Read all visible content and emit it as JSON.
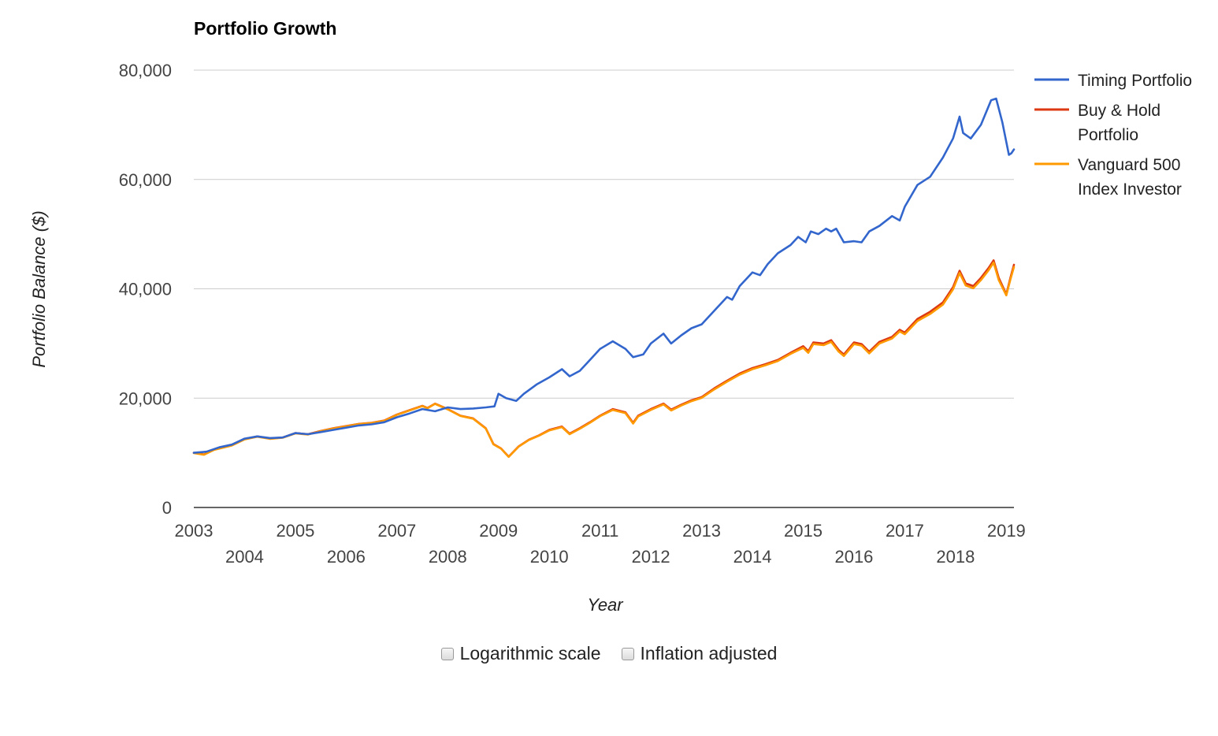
{
  "chart_data": {
    "type": "line",
    "title": "Portfolio Growth",
    "xlabel": "Year",
    "ylabel": "Portfolio Balance ($)",
    "ylim": [
      0,
      80000
    ],
    "y_ticks": [
      "0",
      "20,000",
      "40,000",
      "60,000",
      "80,000"
    ],
    "y_tick_values": [
      0,
      20000,
      40000,
      60000,
      80000
    ],
    "xlim": [
      2003.0,
      2019.15
    ],
    "x_ticks_row1": [
      "2003",
      "2005",
      "2007",
      "2009",
      "2011",
      "2013",
      "2015",
      "2017",
      "2019"
    ],
    "x_ticks_row2": [
      "2004",
      "2006",
      "2008",
      "2010",
      "2012",
      "2014",
      "2016",
      "2018"
    ],
    "grid": true,
    "legend_position": "right",
    "series": [
      {
        "name": "Timing Portfolio",
        "color": "#3366cc",
        "points": [
          [
            2003.0,
            10000
          ],
          [
            2003.25,
            10200
          ],
          [
            2003.5,
            11000
          ],
          [
            2003.75,
            11500
          ],
          [
            2004.0,
            12600
          ],
          [
            2004.25,
            13000
          ],
          [
            2004.5,
            12700
          ],
          [
            2004.75,
            12800
          ],
          [
            2005.0,
            13600
          ],
          [
            2005.25,
            13400
          ],
          [
            2005.5,
            13800
          ],
          [
            2005.75,
            14200
          ],
          [
            2006.0,
            14600
          ],
          [
            2006.25,
            15000
          ],
          [
            2006.5,
            15200
          ],
          [
            2006.75,
            15600
          ],
          [
            2007.0,
            16500
          ],
          [
            2007.25,
            17200
          ],
          [
            2007.5,
            18000
          ],
          [
            2007.75,
            17600
          ],
          [
            2008.0,
            18300
          ],
          [
            2008.25,
            18000
          ],
          [
            2008.5,
            18100
          ],
          [
            2008.75,
            18300
          ],
          [
            2008.92,
            18500
          ],
          [
            2009.0,
            20800
          ],
          [
            2009.15,
            20000
          ],
          [
            2009.35,
            19500
          ],
          [
            2009.5,
            20800
          ],
          [
            2009.75,
            22500
          ],
          [
            2010.0,
            23800
          ],
          [
            2010.25,
            25300
          ],
          [
            2010.4,
            24000
          ],
          [
            2010.6,
            25000
          ],
          [
            2010.75,
            26500
          ],
          [
            2011.0,
            29000
          ],
          [
            2011.25,
            30400
          ],
          [
            2011.5,
            29000
          ],
          [
            2011.65,
            27500
          ],
          [
            2011.85,
            28000
          ],
          [
            2012.0,
            30000
          ],
          [
            2012.25,
            31800
          ],
          [
            2012.4,
            30000
          ],
          [
            2012.6,
            31500
          ],
          [
            2012.8,
            32800
          ],
          [
            2013.0,
            33500
          ],
          [
            2013.25,
            36000
          ],
          [
            2013.5,
            38500
          ],
          [
            2013.6,
            38000
          ],
          [
            2013.75,
            40500
          ],
          [
            2014.0,
            43000
          ],
          [
            2014.15,
            42500
          ],
          [
            2014.3,
            44500
          ],
          [
            2014.5,
            46500
          ],
          [
            2014.75,
            48000
          ],
          [
            2014.9,
            49500
          ],
          [
            2015.05,
            48500
          ],
          [
            2015.15,
            50500
          ],
          [
            2015.3,
            50000
          ],
          [
            2015.45,
            51000
          ],
          [
            2015.55,
            50500
          ],
          [
            2015.65,
            51000
          ],
          [
            2015.8,
            48500
          ],
          [
            2016.0,
            48700
          ],
          [
            2016.15,
            48500
          ],
          [
            2016.3,
            50500
          ],
          [
            2016.5,
            51500
          ],
          [
            2016.75,
            53300
          ],
          [
            2016.9,
            52500
          ],
          [
            2017.0,
            55000
          ],
          [
            2017.25,
            59000
          ],
          [
            2017.5,
            60500
          ],
          [
            2017.75,
            64000
          ],
          [
            2017.95,
            67500
          ],
          [
            2018.08,
            71500
          ],
          [
            2018.15,
            68500
          ],
          [
            2018.3,
            67500
          ],
          [
            2018.5,
            70000
          ],
          [
            2018.7,
            74500
          ],
          [
            2018.8,
            74800
          ],
          [
            2018.92,
            70500
          ],
          [
            2019.05,
            64500
          ],
          [
            2019.1,
            64800
          ],
          [
            2019.15,
            65500
          ]
        ]
      },
      {
        "name": "Buy & Hold Portfolio",
        "color": "#dc3912",
        "points": [
          [
            2003.0,
            10000
          ],
          [
            2003.2,
            9700
          ],
          [
            2003.4,
            10600
          ],
          [
            2003.75,
            11400
          ],
          [
            2004.0,
            12500
          ],
          [
            2004.25,
            13000
          ],
          [
            2004.5,
            12600
          ],
          [
            2004.75,
            12800
          ],
          [
            2005.0,
            13600
          ],
          [
            2005.25,
            13400
          ],
          [
            2005.5,
            14000
          ],
          [
            2005.75,
            14500
          ],
          [
            2006.0,
            14900
          ],
          [
            2006.25,
            15300
          ],
          [
            2006.5,
            15500
          ],
          [
            2006.75,
            15900
          ],
          [
            2007.0,
            17000
          ],
          [
            2007.25,
            17800
          ],
          [
            2007.5,
            18600
          ],
          [
            2007.6,
            18200
          ],
          [
            2007.75,
            19000
          ],
          [
            2008.0,
            18000
          ],
          [
            2008.25,
            16800
          ],
          [
            2008.5,
            16300
          ],
          [
            2008.75,
            14500
          ],
          [
            2008.9,
            11600
          ],
          [
            2009.05,
            10800
          ],
          [
            2009.2,
            9300
          ],
          [
            2009.4,
            11200
          ],
          [
            2009.6,
            12400
          ],
          [
            2009.8,
            13200
          ],
          [
            2010.0,
            14200
          ],
          [
            2010.25,
            14800
          ],
          [
            2010.4,
            13500
          ],
          [
            2010.6,
            14500
          ],
          [
            2010.8,
            15600
          ],
          [
            2011.0,
            16800
          ],
          [
            2011.25,
            18000
          ],
          [
            2011.5,
            17400
          ],
          [
            2011.65,
            15500
          ],
          [
            2011.75,
            16800
          ],
          [
            2012.0,
            18000
          ],
          [
            2012.25,
            19000
          ],
          [
            2012.4,
            17900
          ],
          [
            2012.6,
            18800
          ],
          [
            2012.8,
            19600
          ],
          [
            2013.0,
            20200
          ],
          [
            2013.25,
            21800
          ],
          [
            2013.5,
            23200
          ],
          [
            2013.75,
            24500
          ],
          [
            2014.0,
            25500
          ],
          [
            2014.25,
            26200
          ],
          [
            2014.5,
            27000
          ],
          [
            2014.75,
            28300
          ],
          [
            2015.0,
            29500
          ],
          [
            2015.1,
            28600
          ],
          [
            2015.2,
            30200
          ],
          [
            2015.4,
            30000
          ],
          [
            2015.55,
            30600
          ],
          [
            2015.7,
            28800
          ],
          [
            2015.8,
            28000
          ],
          [
            2016.0,
            30200
          ],
          [
            2016.15,
            29900
          ],
          [
            2016.3,
            28500
          ],
          [
            2016.5,
            30300
          ],
          [
            2016.75,
            31200
          ],
          [
            2016.9,
            32500
          ],
          [
            2017.0,
            32000
          ],
          [
            2017.25,
            34500
          ],
          [
            2017.5,
            35800
          ],
          [
            2017.75,
            37500
          ],
          [
            2017.95,
            40300
          ],
          [
            2018.08,
            43300
          ],
          [
            2018.2,
            41000
          ],
          [
            2018.35,
            40500
          ],
          [
            2018.5,
            42000
          ],
          [
            2018.65,
            43800
          ],
          [
            2018.75,
            45200
          ],
          [
            2018.85,
            42000
          ],
          [
            2019.0,
            39000
          ],
          [
            2019.08,
            42000
          ],
          [
            2019.15,
            44400
          ]
        ]
      },
      {
        "name": "Vanguard 500 Index Investor",
        "color": "#ff9900",
        "points": [
          [
            2003.0,
            9950
          ],
          [
            2003.2,
            9650
          ],
          [
            2003.4,
            10550
          ],
          [
            2003.75,
            11350
          ],
          [
            2004.0,
            12450
          ],
          [
            2004.25,
            12950
          ],
          [
            2004.5,
            12550
          ],
          [
            2004.75,
            12750
          ],
          [
            2005.0,
            13550
          ],
          [
            2005.25,
            13350
          ],
          [
            2005.5,
            13950
          ],
          [
            2005.75,
            14450
          ],
          [
            2006.0,
            14850
          ],
          [
            2006.25,
            15250
          ],
          [
            2006.5,
            15450
          ],
          [
            2006.75,
            15850
          ],
          [
            2007.0,
            16950
          ],
          [
            2007.25,
            17750
          ],
          [
            2007.5,
            18550
          ],
          [
            2007.6,
            18150
          ],
          [
            2007.75,
            18950
          ],
          [
            2008.0,
            17950
          ],
          [
            2008.25,
            16750
          ],
          [
            2008.5,
            16250
          ],
          [
            2008.75,
            14450
          ],
          [
            2008.9,
            11550
          ],
          [
            2009.05,
            10750
          ],
          [
            2009.2,
            9250
          ],
          [
            2009.4,
            11150
          ],
          [
            2009.6,
            12350
          ],
          [
            2009.8,
            13150
          ],
          [
            2010.0,
            14100
          ],
          [
            2010.25,
            14700
          ],
          [
            2010.4,
            13400
          ],
          [
            2010.6,
            14400
          ],
          [
            2010.8,
            15500
          ],
          [
            2011.0,
            16700
          ],
          [
            2011.25,
            17850
          ],
          [
            2011.5,
            17250
          ],
          [
            2011.65,
            15350
          ],
          [
            2011.75,
            16650
          ],
          [
            2012.0,
            17850
          ],
          [
            2012.25,
            18850
          ],
          [
            2012.4,
            17750
          ],
          [
            2012.6,
            18650
          ],
          [
            2012.8,
            19450
          ],
          [
            2013.0,
            20050
          ],
          [
            2013.25,
            21600
          ],
          [
            2013.5,
            23000
          ],
          [
            2013.75,
            24300
          ],
          [
            2014.0,
            25300
          ],
          [
            2014.25,
            26000
          ],
          [
            2014.5,
            26800
          ],
          [
            2014.75,
            28100
          ],
          [
            2015.0,
            29200
          ],
          [
            2015.1,
            28300
          ],
          [
            2015.2,
            29900
          ],
          [
            2015.4,
            29700
          ],
          [
            2015.55,
            30300
          ],
          [
            2015.7,
            28500
          ],
          [
            2015.8,
            27700
          ],
          [
            2016.0,
            29900
          ],
          [
            2016.15,
            29600
          ],
          [
            2016.3,
            28200
          ],
          [
            2016.5,
            30000
          ],
          [
            2016.75,
            30900
          ],
          [
            2016.9,
            32200
          ],
          [
            2017.0,
            31700
          ],
          [
            2017.25,
            34100
          ],
          [
            2017.5,
            35400
          ],
          [
            2017.75,
            37100
          ],
          [
            2017.95,
            39900
          ],
          [
            2018.08,
            42900
          ],
          [
            2018.2,
            40600
          ],
          [
            2018.35,
            40100
          ],
          [
            2018.5,
            41600
          ],
          [
            2018.65,
            43400
          ],
          [
            2018.75,
            44800
          ],
          [
            2018.85,
            41600
          ],
          [
            2019.0,
            38800
          ],
          [
            2019.08,
            41700
          ],
          [
            2019.15,
            44000
          ]
        ]
      }
    ]
  },
  "legend": {
    "items": [
      {
        "lines": [
          "Timing Portfolio"
        ],
        "color": "#3366cc"
      },
      {
        "lines": [
          "Buy & Hold",
          "Portfolio"
        ],
        "color": "#dc3912"
      },
      {
        "lines": [
          "Vanguard 500",
          "Index Investor"
        ],
        "color": "#ff9900"
      }
    ]
  },
  "controls": {
    "log_scale_label": "Logarithmic scale",
    "inflation_label": "Inflation adjusted"
  }
}
